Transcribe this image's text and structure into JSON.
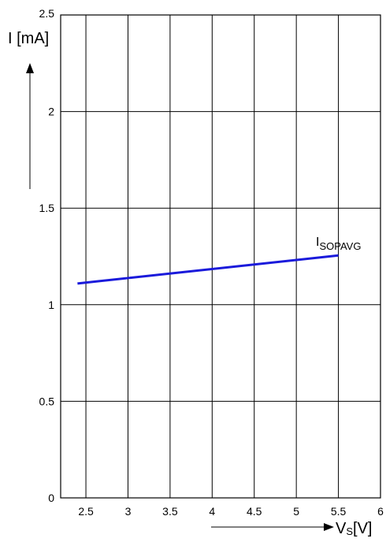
{
  "chart_data": {
    "type": "line",
    "title": "",
    "xlabel": {
      "main": "V",
      "sub": "S",
      "unit": "[V]"
    },
    "ylabel": "I [mA]",
    "xlim": [
      2.2,
      6
    ],
    "ylim": [
      0,
      2.5
    ],
    "x_ticks": [
      "2.5",
      "3",
      "3.5",
      "4",
      "4.5",
      "5",
      "5.5",
      "6"
    ],
    "y_ticks": [
      "0",
      "0.5",
      "1",
      "1.5",
      "2",
      "2.5"
    ],
    "x_tick_values": [
      2.5,
      3,
      3.5,
      4,
      4.5,
      5,
      5.5,
      6
    ],
    "y_tick_values": [
      0,
      0.5,
      1,
      1.5,
      2,
      2.5
    ],
    "grid": true,
    "series": [
      {
        "name": {
          "main": "I",
          "sub": "SOPAVG"
        },
        "color": "#1a1adb",
        "x": [
          2.4,
          5.5
        ],
        "y": [
          1.11,
          1.255
        ]
      }
    ]
  }
}
